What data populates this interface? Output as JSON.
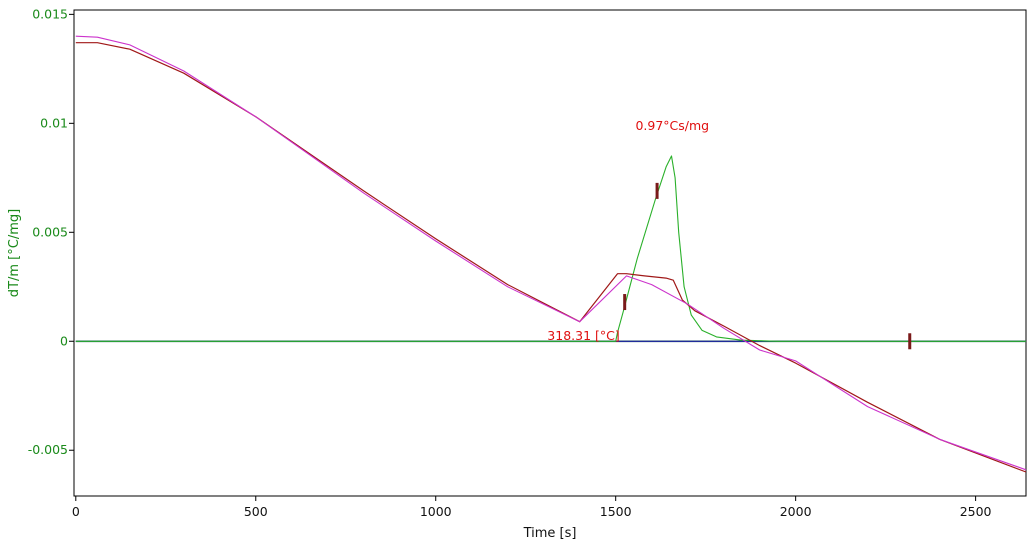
{
  "chart_data": {
    "type": "line",
    "xlabel": "Time [s]",
    "ylabel": "dT/m  [°C/mg]",
    "xlim": [
      -5,
      2640
    ],
    "ylim": [
      -0.0071,
      0.0152
    ],
    "x_ticks": [
      0,
      500,
      1000,
      1500,
      2000,
      2500
    ],
    "y_ticks": [
      -0.005,
      0,
      0.005,
      0.01,
      0.015
    ],
    "x_tick_labels": [
      "0",
      "500",
      "1000",
      "1500",
      "2000",
      "2500"
    ],
    "y_tick_labels": [
      "-0.005",
      "0",
      "0.005",
      "0.01",
      "0.015"
    ],
    "grid": false,
    "colors": {
      "axis_text_y": "#1a8a1a",
      "axis_text_x": "#111111",
      "annotation": "#e01010",
      "zero_line": "#1f4f5a",
      "peak_curve": "#2ab02a",
      "baseline_blue": "#2020b0",
      "magenta_curve": "#cc33cc",
      "darkred_curve": "#a01818",
      "marker": "#7a1a1a"
    },
    "series": [
      {
        "key": "magenta",
        "x": [
          0,
          60,
          150,
          300,
          500,
          800,
          1000,
          1200,
          1400,
          1530,
          1600,
          1700,
          1800,
          1900,
          2000,
          2200,
          2400,
          2640
        ],
        "y": [
          0.014,
          0.01395,
          0.0136,
          0.0124,
          0.0103,
          0.0068,
          0.0046,
          0.0025,
          0.0009,
          0.003,
          0.0026,
          0.0017,
          0.0006,
          -0.0004,
          -0.0009,
          -0.003,
          -0.0045,
          -0.0059
        ]
      },
      {
        "key": "darkred",
        "x": [
          0,
          60,
          150,
          300,
          500,
          800,
          1000,
          1200,
          1400,
          1505,
          1530,
          1580,
          1640,
          1660,
          1685,
          1720,
          1800,
          1900,
          2000,
          2200,
          2400,
          2640
        ],
        "y": [
          0.0137,
          0.0137,
          0.0134,
          0.0123,
          0.0103,
          0.0069,
          0.0047,
          0.0026,
          0.0009,
          0.0031,
          0.0031,
          0.003,
          0.0029,
          0.0028,
          0.0019,
          0.0014,
          0.0007,
          -0.0002,
          -0.001,
          -0.0028,
          -0.0045,
          -0.006
        ]
      },
      {
        "key": "green_peak",
        "x": [
          0,
          1500,
          1505,
          1520,
          1560,
          1610,
          1640,
          1655,
          1665,
          1675,
          1690,
          1710,
          1740,
          1780,
          1850,
          1950,
          2640
        ],
        "y": [
          0,
          0,
          0.0004,
          0.0013,
          0.0038,
          0.0065,
          0.008,
          0.0085,
          0.0075,
          0.005,
          0.0025,
          0.0012,
          0.0005,
          0.0002,
          5e-05,
          0,
          0
        ]
      },
      {
        "key": "blue_baseline",
        "x": [
          0,
          2640
        ],
        "y": [
          0,
          0
        ]
      }
    ],
    "annotations": [
      {
        "text": "0.97°Cs/mg",
        "x": 1555,
        "y": 0.0097
      },
      {
        "text": "318.31 [°C]",
        "x": 1310,
        "y": 5e-05
      }
    ],
    "markers": [
      {
        "x": 1525,
        "y": 0.0018
      },
      {
        "x": 1615,
        "y": 0.0069
      },
      {
        "x": 2317,
        "y": 0.0
      }
    ]
  }
}
